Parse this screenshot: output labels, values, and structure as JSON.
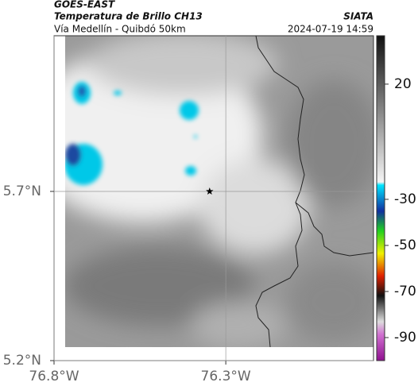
{
  "header": {
    "source": "GOES-EAST",
    "title": "Temperatura de Brillo CH13",
    "location": "Vía Medellín - Quibdó 50km",
    "agency": "SIATA",
    "datetime": "2024-07-19 14:59"
  },
  "map": {
    "xlim": [
      -76.8,
      -75.87
    ],
    "ylim": [
      5.2,
      6.16
    ],
    "xticks": [
      {
        "value": -76.8,
        "label": "76.8°W"
      },
      {
        "value": -76.3,
        "label": "76.3°W"
      }
    ],
    "yticks": [
      {
        "value": 5.7,
        "label": "5.7°N"
      },
      {
        "value": 5.2,
        "label": "5.2°N"
      }
    ],
    "marker": {
      "lon": -76.347,
      "lat": 5.7
    }
  },
  "colorbar": {
    "lim": [
      -100,
      41
    ],
    "ticks": [
      20,
      -30,
      -50,
      -70,
      -90
    ]
  }
}
